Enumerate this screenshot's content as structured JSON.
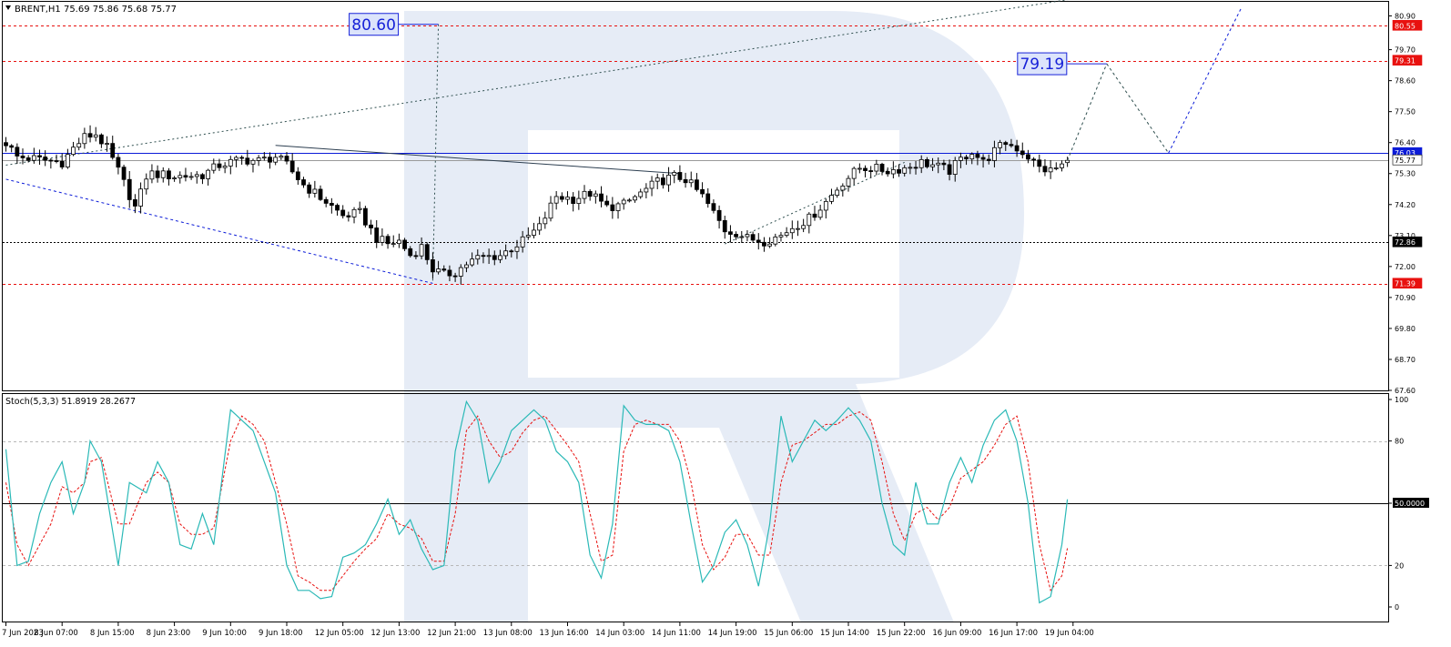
{
  "window": {
    "header": "BRENT,H1  75.69 75.86 75.68 75.77",
    "indicator_header": "Stoch(5,3,3) 51.8919 28.2677"
  },
  "colors": {
    "background": "#ffffff",
    "frame": "#000000",
    "resistance_red": "#e8110f",
    "channel_blue": "#0b1bd8",
    "stoch_main": "#2bb9b7",
    "stoch_signal": "#e8110f",
    "watermark": "#e6ecf6",
    "target_box_bg": "#dce4fb",
    "target_box_border": "#1722d8"
  },
  "price_panel": {
    "ylim": [
      67.6,
      81.4
    ],
    "axis_ticks": [
      "80.90",
      "79.70",
      "78.60",
      "77.50",
      "76.40",
      "75.30",
      "74.20",
      "73.10",
      "72.00",
      "70.90",
      "69.80",
      "68.70",
      "67.60"
    ],
    "levels": [
      {
        "label": "80.55",
        "value": 80.55,
        "style": "red-dashed",
        "badge_bg": "#e8110f",
        "badge_fg": "#ffffff"
      },
      {
        "label": "79.31",
        "value": 79.31,
        "style": "red-dashed",
        "badge_bg": "#e8110f",
        "badge_fg": "#ffffff"
      },
      {
        "label": "76.03",
        "value": 76.03,
        "style": "blue-solid",
        "badge_bg": "#0b1bd8",
        "badge_fg": "#ffffff"
      },
      {
        "label": "75.77",
        "value": 75.77,
        "style": "gray-solid",
        "badge_bg": "#ffffff",
        "badge_fg": "#000000"
      },
      {
        "label": "72.86",
        "value": 72.86,
        "style": "black-dashed",
        "badge_bg": "#000000",
        "badge_fg": "#ffffff"
      },
      {
        "label": "71.39",
        "value": 71.39,
        "style": "red-dashed",
        "badge_bg": "#e8110f",
        "badge_fg": "#ffffff"
      }
    ],
    "targets": [
      {
        "label": "80.60",
        "value": 80.6,
        "bar": 77
      },
      {
        "label": "79.19",
        "value": 79.2,
        "bar": 196
      }
    ]
  },
  "stoch_panel": {
    "ylim": [
      0,
      100
    ],
    "axis_ticks": [
      "100",
      "80",
      "50.0000",
      "20",
      "0"
    ],
    "levels": [
      80,
      50,
      20
    ]
  },
  "x_axis": {
    "labels": [
      "7 Jun 2023",
      "8 Jun 07:00",
      "8 Jun 15:00",
      "8 Jun 23:00",
      "9 Jun 10:00",
      "9 Jun 18:00",
      "12 Jun 05:00",
      "12 Jun 13:00",
      "12 Jun 21:00",
      "13 Jun 08:00",
      "13 Jun 16:00",
      "14 Jun 03:00",
      "14 Jun 11:00",
      "14 Jun 19:00",
      "15 Jun 06:00",
      "15 Jun 14:00",
      "15 Jun 22:00",
      "16 Jun 09:00",
      "16 Jun 17:00",
      "19 Jun 04:00"
    ],
    "label_bars": [
      0,
      10,
      20,
      30,
      40,
      50,
      60,
      70,
      80,
      90,
      100,
      110,
      120,
      130,
      140,
      150,
      160,
      170,
      180,
      190
    ]
  },
  "chart_data": {
    "type": "candlestick",
    "symbol": "BRENT",
    "timeframe": "H1",
    "ohlc_last": {
      "open": 75.69,
      "high": 75.86,
      "low": 75.68,
      "close": 75.77
    },
    "candles_close_anchors": [
      [
        0,
        76.4
      ],
      [
        2,
        75.9
      ],
      [
        6,
        75.8
      ],
      [
        10,
        75.7
      ],
      [
        12,
        76.2
      ],
      [
        14,
        76.6
      ],
      [
        16,
        76.7
      ],
      [
        18,
        76.2
      ],
      [
        20,
        75.4
      ],
      [
        23,
        74.1
      ],
      [
        24,
        74.6
      ],
      [
        25,
        75.2
      ],
      [
        26,
        75.3
      ],
      [
        30,
        75.2
      ],
      [
        35,
        75.25
      ],
      [
        38,
        75.6
      ],
      [
        42,
        75.8
      ],
      [
        45,
        75.75
      ],
      [
        48,
        75.9
      ],
      [
        50,
        75.6
      ],
      [
        53,
        74.9
      ],
      [
        55,
        74.6
      ],
      [
        57,
        74.3
      ],
      [
        60,
        73.8
      ],
      [
        63,
        73.9
      ],
      [
        66,
        73.0
      ],
      [
        68,
        72.8
      ],
      [
        70,
        72.9
      ],
      [
        72,
        72.4
      ],
      [
        74,
        72.7
      ],
      [
        76,
        71.9
      ],
      [
        78,
        71.7
      ],
      [
        80,
        71.8
      ],
      [
        82,
        72.1
      ],
      [
        84,
        72.3
      ],
      [
        88,
        72.4
      ],
      [
        92,
        72.9
      ],
      [
        95,
        73.4
      ],
      [
        98,
        74.5
      ],
      [
        101,
        74.4
      ],
      [
        104,
        74.6
      ],
      [
        107,
        74.1
      ],
      [
        110,
        74.2
      ],
      [
        113,
        74.6
      ],
      [
        116,
        75.0
      ],
      [
        119,
        75.2
      ],
      [
        121,
        75.1
      ],
      [
        124,
        74.5
      ],
      [
        126,
        73.9
      ],
      [
        128,
        73.3
      ],
      [
        130,
        73.2
      ],
      [
        132,
        73.0
      ],
      [
        135,
        72.9
      ],
      [
        138,
        73.1
      ],
      [
        140,
        73.4
      ],
      [
        143,
        73.7
      ],
      [
        146,
        74.3
      ],
      [
        149,
        75.0
      ],
      [
        152,
        75.5
      ],
      [
        154,
        75.5
      ],
      [
        157,
        75.4
      ],
      [
        160,
        75.5
      ],
      [
        163,
        75.7
      ],
      [
        165,
        75.6
      ],
      [
        168,
        75.4
      ],
      [
        170,
        75.8
      ],
      [
        172,
        76.1
      ],
      [
        174,
        75.7
      ],
      [
        176,
        76.1
      ],
      [
        178,
        76.4
      ],
      [
        180,
        76.2
      ],
      [
        182,
        75.9
      ],
      [
        184,
        75.5
      ],
      [
        186,
        75.4
      ],
      [
        188,
        75.6
      ],
      [
        189,
        75.77
      ]
    ],
    "forecast_path": [
      [
        189,
        75.77
      ],
      [
        196,
        79.2
      ],
      [
        207,
        76.03
      ],
      [
        220,
        81.2
      ]
    ],
    "trend_lines": [
      {
        "from": [
          0,
          75.6
        ],
        "to": [
          193,
          81.6
        ],
        "style": "dotted"
      },
      {
        "from": [
          48,
          76.3
        ],
        "to": [
          120,
          75.3
        ],
        "style": "solid"
      },
      {
        "from": [
          0,
          75.1
        ],
        "to": [
          76,
          71.4
        ],
        "style": "blue-dashed"
      },
      {
        "from": [
          128,
          72.8
        ],
        "to": [
          160,
          75.7
        ],
        "style": "dotted"
      },
      {
        "from": [
          77,
          80.6
        ],
        "to": [
          76,
          71.5
        ],
        "style": "dotted-vertical"
      }
    ],
    "stochastic": {
      "name": "Stoch(5,3,3)",
      "main_last": 51.8919,
      "signal_last": 28.2677,
      "main_anchors": [
        [
          0,
          76
        ],
        [
          2,
          20
        ],
        [
          4,
          22
        ],
        [
          6,
          45
        ],
        [
          8,
          60
        ],
        [
          10,
          70
        ],
        [
          12,
          45
        ],
        [
          14,
          60
        ],
        [
          15,
          80
        ],
        [
          17,
          70
        ],
        [
          20,
          20
        ],
        [
          22,
          60
        ],
        [
          25,
          55
        ],
        [
          27,
          70
        ],
        [
          29,
          60
        ],
        [
          31,
          30
        ],
        [
          33,
          28
        ],
        [
          35,
          45
        ],
        [
          37,
          30
        ],
        [
          40,
          95
        ],
        [
          42,
          90
        ],
        [
          44,
          85
        ],
        [
          46,
          70
        ],
        [
          48,
          55
        ],
        [
          50,
          20
        ],
        [
          52,
          8
        ],
        [
          54,
          8
        ],
        [
          56,
          4
        ],
        [
          58,
          5
        ],
        [
          60,
          24
        ],
        [
          62,
          26
        ],
        [
          64,
          30
        ],
        [
          66,
          40
        ],
        [
          68,
          52
        ],
        [
          70,
          35
        ],
        [
          72,
          42
        ],
        [
          74,
          28
        ],
        [
          76,
          18
        ],
        [
          78,
          20
        ],
        [
          80,
          75
        ],
        [
          82,
          99
        ],
        [
          84,
          90
        ],
        [
          86,
          60
        ],
        [
          88,
          70
        ],
        [
          90,
          85
        ],
        [
          92,
          90
        ],
        [
          94,
          95
        ],
        [
          96,
          90
        ],
        [
          98,
          75
        ],
        [
          100,
          70
        ],
        [
          102,
          60
        ],
        [
          104,
          25
        ],
        [
          106,
          14
        ],
        [
          108,
          40
        ],
        [
          110,
          97
        ],
        [
          112,
          90
        ],
        [
          114,
          88
        ],
        [
          116,
          88
        ],
        [
          118,
          85
        ],
        [
          120,
          70
        ],
        [
          122,
          40
        ],
        [
          124,
          12
        ],
        [
          126,
          20
        ],
        [
          128,
          36
        ],
        [
          130,
          42
        ],
        [
          132,
          30
        ],
        [
          134,
          10
        ],
        [
          136,
          40
        ],
        [
          138,
          92
        ],
        [
          140,
          70
        ],
        [
          142,
          80
        ],
        [
          144,
          90
        ],
        [
          146,
          85
        ],
        [
          148,
          90
        ],
        [
          150,
          96
        ],
        [
          152,
          90
        ],
        [
          154,
          80
        ],
        [
          156,
          50
        ],
        [
          158,
          30
        ],
        [
          160,
          25
        ],
        [
          162,
          60
        ],
        [
          164,
          40
        ],
        [
          166,
          40
        ],
        [
          168,
          60
        ],
        [
          170,
          72
        ],
        [
          172,
          60
        ],
        [
          174,
          78
        ],
        [
          176,
          90
        ],
        [
          178,
          95
        ],
        [
          180,
          80
        ],
        [
          182,
          50
        ],
        [
          184,
          2
        ],
        [
          186,
          5
        ],
        [
          188,
          30
        ],
        [
          189,
          51.9
        ]
      ],
      "signal_anchors": [
        [
          0,
          60
        ],
        [
          2,
          30
        ],
        [
          4,
          20
        ],
        [
          6,
          30
        ],
        [
          8,
          40
        ],
        [
          10,
          58
        ],
        [
          12,
          55
        ],
        [
          14,
          60
        ],
        [
          15,
          70
        ],
        [
          17,
          72
        ],
        [
          20,
          40
        ],
        [
          22,
          40
        ],
        [
          25,
          60
        ],
        [
          27,
          65
        ],
        [
          29,
          60
        ],
        [
          31,
          40
        ],
        [
          33,
          35
        ],
        [
          35,
          35
        ],
        [
          37,
          38
        ],
        [
          40,
          80
        ],
        [
          42,
          92
        ],
        [
          44,
          88
        ],
        [
          46,
          80
        ],
        [
          48,
          60
        ],
        [
          50,
          40
        ],
        [
          52,
          15
        ],
        [
          54,
          12
        ],
        [
          56,
          8
        ],
        [
          58,
          8
        ],
        [
          60,
          15
        ],
        [
          62,
          22
        ],
        [
          64,
          28
        ],
        [
          66,
          33
        ],
        [
          68,
          45
        ],
        [
          70,
          40
        ],
        [
          72,
          38
        ],
        [
          74,
          33
        ],
        [
          76,
          22
        ],
        [
          78,
          22
        ],
        [
          80,
          45
        ],
        [
          82,
          85
        ],
        [
          84,
          92
        ],
        [
          86,
          80
        ],
        [
          88,
          72
        ],
        [
          90,
          75
        ],
        [
          92,
          84
        ],
        [
          94,
          90
        ],
        [
          96,
          92
        ],
        [
          98,
          85
        ],
        [
          100,
          78
        ],
        [
          102,
          70
        ],
        [
          104,
          45
        ],
        [
          106,
          22
        ],
        [
          108,
          25
        ],
        [
          110,
          75
        ],
        [
          112,
          88
        ],
        [
          114,
          90
        ],
        [
          116,
          88
        ],
        [
          118,
          88
        ],
        [
          120,
          80
        ],
        [
          122,
          60
        ],
        [
          124,
          30
        ],
        [
          126,
          18
        ],
        [
          128,
          24
        ],
        [
          130,
          35
        ],
        [
          132,
          35
        ],
        [
          134,
          25
        ],
        [
          136,
          25
        ],
        [
          138,
          60
        ],
        [
          140,
          78
        ],
        [
          142,
          80
        ],
        [
          144,
          84
        ],
        [
          146,
          88
        ],
        [
          148,
          88
        ],
        [
          150,
          92
        ],
        [
          152,
          94
        ],
        [
          154,
          90
        ],
        [
          156,
          70
        ],
        [
          158,
          45
        ],
        [
          160,
          32
        ],
        [
          162,
          45
        ],
        [
          164,
          48
        ],
        [
          166,
          42
        ],
        [
          168,
          48
        ],
        [
          170,
          62
        ],
        [
          172,
          66
        ],
        [
          174,
          70
        ],
        [
          176,
          78
        ],
        [
          178,
          88
        ],
        [
          180,
          92
        ],
        [
          182,
          70
        ],
        [
          184,
          30
        ],
        [
          186,
          8
        ],
        [
          188,
          15
        ],
        [
          189,
          28.3
        ]
      ]
    }
  }
}
